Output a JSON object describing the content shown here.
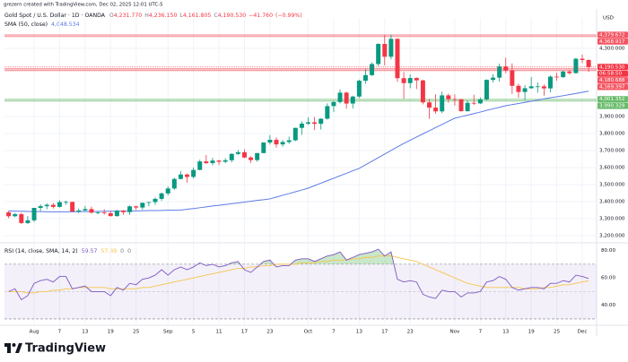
{
  "chart_data": {
    "type": "candlestick",
    "credit": "grezern created with TradingView.com, Dec 02, 2025 12:01 UTC-5",
    "header": {
      "symbol": "Gold Spot / U.S. Dollar · 1D · OANDA",
      "ohlc": [
        {
          "label": "O",
          "value": "4,231.770"
        },
        {
          "label": "H",
          "value": "4,236.150"
        },
        {
          "label": "L",
          "value": "4,161.805"
        },
        {
          "label": "C",
          "value": "4,190.530"
        }
      ],
      "change": "−41.760",
      "change_pct": "(−0.99%)"
    },
    "currency": "USD",
    "watermark": "TradingView",
    "up_color": "#089981",
    "down_color": "#f23645",
    "xlim": [
      -0.65,
      92.25
    ],
    "xticks": [
      {
        "value": 4,
        "label": "Aug"
      },
      {
        "value": 8,
        "label": "7"
      },
      {
        "value": 12,
        "label": "13"
      },
      {
        "value": 16,
        "label": "19"
      },
      {
        "value": 20,
        "label": "25"
      },
      {
        "value": 25,
        "label": "Sep"
      },
      {
        "value": 29,
        "label": "5"
      },
      {
        "value": 33,
        "label": "11"
      },
      {
        "value": 37,
        "label": "17"
      },
      {
        "value": 41,
        "label": "23"
      },
      {
        "value": 47,
        "label": "Oct"
      },
      {
        "value": 51,
        "label": "7"
      },
      {
        "value": 55,
        "label": "13"
      },
      {
        "value": 59,
        "label": "17"
      },
      {
        "value": 63,
        "label": "23"
      },
      {
        "value": 70,
        "label": "Nov"
      },
      {
        "value": 74,
        "label": "7"
      },
      {
        "value": 78,
        "label": "13"
      },
      {
        "value": 82,
        "label": "19"
      },
      {
        "value": 86,
        "label": "25"
      },
      {
        "value": 90,
        "label": "Dec"
      }
    ],
    "ylim": [
      3163,
      4479
    ],
    "yticks": [
      {
        "value": 3200,
        "label": "3,200.000"
      },
      {
        "value": 3300,
        "label": "3,300.000"
      },
      {
        "value": 3400,
        "label": "3,400.000"
      },
      {
        "value": 3500,
        "label": "3,500.000"
      },
      {
        "value": 3600,
        "label": "3,600.000"
      },
      {
        "value": 3700,
        "label": "3,700.000"
      },
      {
        "value": 3800,
        "label": "3,800.000"
      },
      {
        "value": 3900,
        "label": "3,900.000"
      },
      {
        "value": 4300,
        "label": "4,300.000"
      }
    ],
    "grid": true,
    "open": [
      3337,
      3314,
      3326,
      3274,
      3290,
      3363,
      3373,
      3381,
      3369,
      3397,
      3398,
      3341,
      3348,
      3356,
      3335,
      3336,
      3332,
      3315,
      3347,
      3338,
      3372,
      3365,
      3393,
      3397,
      3416,
      3448,
      3477,
      3533,
      3559,
      3545,
      3586,
      3636,
      3626,
      3641,
      3634,
      3643,
      3680,
      3690,
      3659,
      3644,
      3685,
      3747,
      3763,
      3736,
      3750,
      3760,
      3833,
      3858,
      3866,
      3857,
      3887,
      3961,
      3985,
      4040,
      3976,
      4017,
      4110,
      4143,
      4208,
      4326,
      4251,
      4356,
      4125,
      4096,
      4126,
      4112,
      3983,
      3952,
      3930,
      4024,
      4002,
      4001,
      3931,
      3980,
      3977,
      4000,
      4115,
      4128,
      4194,
      4171,
      4080,
      4044,
      4066,
      4077,
      4077,
      4065,
      4134,
      4131,
      4164,
      4155,
      4239,
      4231.77
    ],
    "high": [
      3345,
      3334,
      3334,
      3315,
      3363,
      3385,
      3390,
      3392,
      3408,
      3405,
      3400,
      3360,
      3375,
      3370,
      3345,
      3355,
      3345,
      3351,
      3351,
      3378,
      3376,
      3394,
      3398,
      3424,
      3454,
      3490,
      3540,
      3578,
      3566,
      3600,
      3646,
      3674,
      3658,
      3645,
      3655,
      3685,
      3703,
      3707,
      3667,
      3686,
      3749,
      3791,
      3778,
      3761,
      3782,
      3834,
      3871,
      3895,
      3897,
      3889,
      3977,
      3991,
      4059,
      4045,
      4022,
      4116,
      4179,
      4218,
      4330,
      4379,
      4381,
      4360,
      4162,
      4147,
      4130,
      4115,
      4003,
      4031,
      4046,
      4034,
      4030,
      4003,
      3994,
      4028,
      4012,
      4118,
      4148,
      4211,
      4245,
      4212,
      4093,
      4085,
      4132,
      4100,
      4088,
      4141,
      4157,
      4169,
      4173,
      4245,
      4264,
      4236.15
    ],
    "low": [
      3302,
      3308,
      3268,
      3268,
      3280,
      3345,
      3355,
      3359,
      3365,
      3382,
      3341,
      3331,
      3345,
      3330,
      3325,
      3323,
      3312,
      3311,
      3323,
      3321,
      3352,
      3352,
      3373,
      3381,
      3404,
      3436,
      3469,
      3530,
      3511,
      3535,
      3585,
      3621,
      3614,
      3615,
      3625,
      3631,
      3673,
      3655,
      3627,
      3634,
      3684,
      3735,
      3717,
      3722,
      3739,
      3755,
      3792,
      3850,
      3820,
      3823,
      3882,
      3927,
      3976,
      3945,
      3947,
      4008,
      4092,
      4138,
      4196,
      4200,
      4236,
      4103,
      4004,
      4066,
      4061,
      3971,
      3886,
      3916,
      3920,
      3980,
      3963,
      3928,
      3929,
      3968,
      3973,
      3995,
      4100,
      4105,
      4155,
      4032,
      4009,
      3997,
      4062,
      4040,
      4022,
      4041,
      4110,
      4127,
      4146,
      4152,
      4213,
      4161.805
    ],
    "close": [
      3314,
      3326,
      3274,
      3290,
      3363,
      3373,
      3381,
      3369,
      3397,
      3398,
      3341,
      3348,
      3356,
      3335,
      3336,
      3332,
      3315,
      3347,
      3338,
      3372,
      3365,
      3393,
      3397,
      3416,
      3448,
      3477,
      3533,
      3559,
      3545,
      3586,
      3636,
      3626,
      3641,
      3634,
      3643,
      3680,
      3690,
      3659,
      3644,
      3685,
      3747,
      3763,
      3736,
      3750,
      3760,
      3833,
      3858,
      3866,
      3857,
      3887,
      3961,
      3985,
      4040,
      3976,
      4017,
      4110,
      4143,
      4208,
      4326,
      4251,
      4356,
      4125,
      4096,
      4126,
      4112,
      3983,
      3952,
      3930,
      4024,
      4002,
      4001,
      3931,
      3980,
      3977,
      4000,
      4115,
      4128,
      4194,
      4171,
      4080,
      4044,
      4066,
      4077,
      4077,
      4065,
      4134,
      4131,
      4164,
      4155,
      4239,
      4232,
      4190.53
    ],
    "last_price": {
      "value": 4190.53,
      "label": "4,190.530"
    },
    "countdown": "06:58:50",
    "zones": [
      {
        "top": {
          "value": 4379.672,
          "label": "4,379.672"
        },
        "bottom": {
          "value": 4368.917,
          "label": "4,368.917"
        },
        "color": "#f23645"
      },
      {
        "top": {
          "value": 4180.688,
          "label": "4,180.688"
        },
        "bottom": {
          "value": 4169.397,
          "label": "4,169.397"
        },
        "color": "#f23645"
      },
      {
        "top": {
          "value": 4001.352,
          "label": "4,001.352"
        },
        "bottom": {
          "value": 3990.329,
          "label": "3,990.329"
        },
        "color": "#4caf50"
      }
    ],
    "sma": {
      "name": "SMA (50, close)",
      "color": "#5b7be6",
      "last_label": "4,048.534",
      "values": [
        3345,
        3344,
        3343,
        3342,
        3341,
        3341,
        3340,
        3340,
        3340,
        3340,
        3340,
        3341,
        3341,
        3342,
        3342,
        3343,
        3343,
        3344,
        3344,
        3345,
        3345,
        3346,
        3347,
        3347,
        3348,
        3349,
        3349,
        3350,
        3355,
        3359,
        3364,
        3369,
        3374,
        3378,
        3383,
        3388,
        3392,
        3397,
        3402,
        3407,
        3411,
        3416,
        3426,
        3437,
        3447,
        3458,
        3468,
        3479,
        3494,
        3508,
        3523,
        3537,
        3552,
        3566,
        3581,
        3595,
        3616,
        3637,
        3658,
        3679,
        3700,
        3721,
        3742,
        3761,
        3779,
        3798,
        3816,
        3835,
        3853,
        3872,
        3890,
        3899,
        3908,
        3917,
        3926,
        3936,
        3945,
        3954,
        3963,
        3970,
        3976,
        3983,
        3990,
        3996,
        4003,
        4010,
        4016,
        4022,
        4029,
        4035,
        4042,
        4048.534
      ]
    },
    "rsi": {
      "name": "RSI (14, close, SMA, 14, 2)",
      "color": "#7e57c2",
      "last_label": "59.57",
      "extra_values": [
        0,
        0
      ],
      "ylim": [
        26,
        85
      ],
      "yticks": [
        {
          "value": 40,
          "label": "40.00"
        },
        {
          "value": 60,
          "label": "60.00"
        },
        {
          "value": 80,
          "label": "80.00"
        }
      ],
      "upper_band": 70,
      "middle_band": 50,
      "lower_band": 30,
      "values": [
        50,
        52,
        44,
        47,
        56,
        58,
        59,
        57,
        61,
        61,
        52,
        53,
        54,
        50,
        50,
        50,
        47,
        53,
        51,
        56,
        55,
        59,
        60,
        62,
        66,
        62,
        66,
        68,
        66,
        68,
        71,
        69,
        70,
        68,
        69,
        71,
        72,
        66,
        64,
        68,
        72,
        73,
        68,
        69,
        69,
        73,
        74,
        74,
        72,
        74,
        76,
        77,
        79,
        73,
        75,
        77,
        78,
        79,
        81,
        76,
        79,
        59,
        57,
        58,
        57,
        48,
        46,
        45,
        51,
        50,
        50,
        46,
        49,
        49,
        50,
        57,
        58,
        61,
        59,
        53,
        51,
        52,
        53,
        53,
        52,
        56,
        56,
        58,
        57,
        62,
        61,
        59.57
      ],
      "ma": {
        "color": "#f7c548",
        "last_label": "57.89",
        "values": [
          50,
          50,
          50,
          49,
          49,
          50,
          50,
          51,
          51,
          52,
          52,
          53,
          53,
          53,
          53,
          53,
          52,
          52,
          52,
          52,
          52,
          53,
          53,
          54,
          55,
          56,
          57,
          58,
          59,
          60,
          61,
          62,
          63,
          64,
          65,
          66,
          67,
          67,
          68,
          68,
          69,
          69,
          70,
          70,
          70,
          70,
          71,
          71,
          71,
          72,
          72,
          73,
          73,
          73,
          74,
          74,
          75,
          75,
          76,
          76,
          76,
          75,
          74,
          73,
          72,
          70,
          68,
          66,
          64,
          62,
          60,
          58,
          56,
          55,
          54,
          53,
          53,
          53,
          53,
          53,
          53,
          52,
          52,
          52,
          53,
          53,
          54,
          55,
          55,
          56,
          57,
          57.89
        ]
      }
    }
  }
}
